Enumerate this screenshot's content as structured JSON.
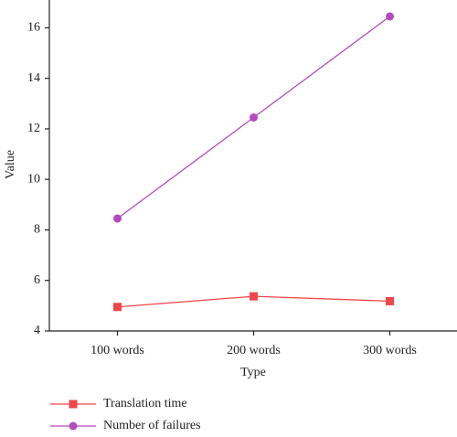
{
  "chart_data": {
    "type": "line",
    "categories": [
      "100 words",
      "200 words",
      "300 words"
    ],
    "series": [
      {
        "name": "Translation time",
        "color": "#f0474a",
        "marker": "square",
        "values": [
          4.95,
          5.37,
          5.18
        ]
      },
      {
        "name": "Number of failures",
        "color": "#b44bbf",
        "marker": "circle",
        "values": [
          8.45,
          12.45,
          16.45
        ]
      }
    ],
    "x_label": "Type",
    "y_label": "Value",
    "ylim": [
      4,
      17.1
    ],
    "yticks": [
      4,
      6,
      8,
      10,
      12,
      14,
      16
    ],
    "legend": "bottom-left"
  }
}
